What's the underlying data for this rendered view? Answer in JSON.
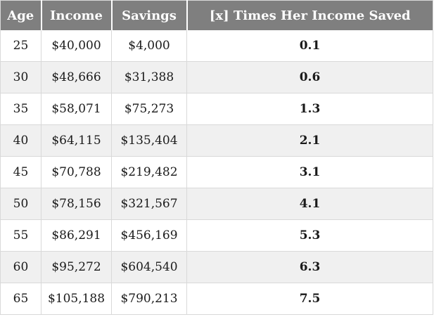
{
  "table": {
    "headers": [
      "Age",
      "Income",
      "Savings",
      "[x] Times Her Income Saved"
    ],
    "rows": [
      [
        "25",
        "$40,000",
        "$4,000",
        "0.1"
      ],
      [
        "30",
        "$48,666",
        "$31,388",
        "0.6"
      ],
      [
        "35",
        "$58,071",
        "$75,273",
        "1.3"
      ],
      [
        "40",
        "$64,115",
        "$135,404",
        "2.1"
      ],
      [
        "45",
        "$70,788",
        "$219,482",
        "3.1"
      ],
      [
        "50",
        "$78,156",
        "$321,567",
        "4.1"
      ],
      [
        "55",
        "$86,291",
        "$456,169",
        "5.3"
      ],
      [
        "60",
        "$95,272",
        "$604,540",
        "6.3"
      ],
      [
        "65",
        "$105,188",
        "$790,213",
        "7.5"
      ]
    ]
  },
  "colors": {
    "header_bg": "#7f7f7f",
    "header_text": "#ffffff",
    "stripe_bg": "#f0f0f0",
    "border": "#d9d9d9"
  }
}
